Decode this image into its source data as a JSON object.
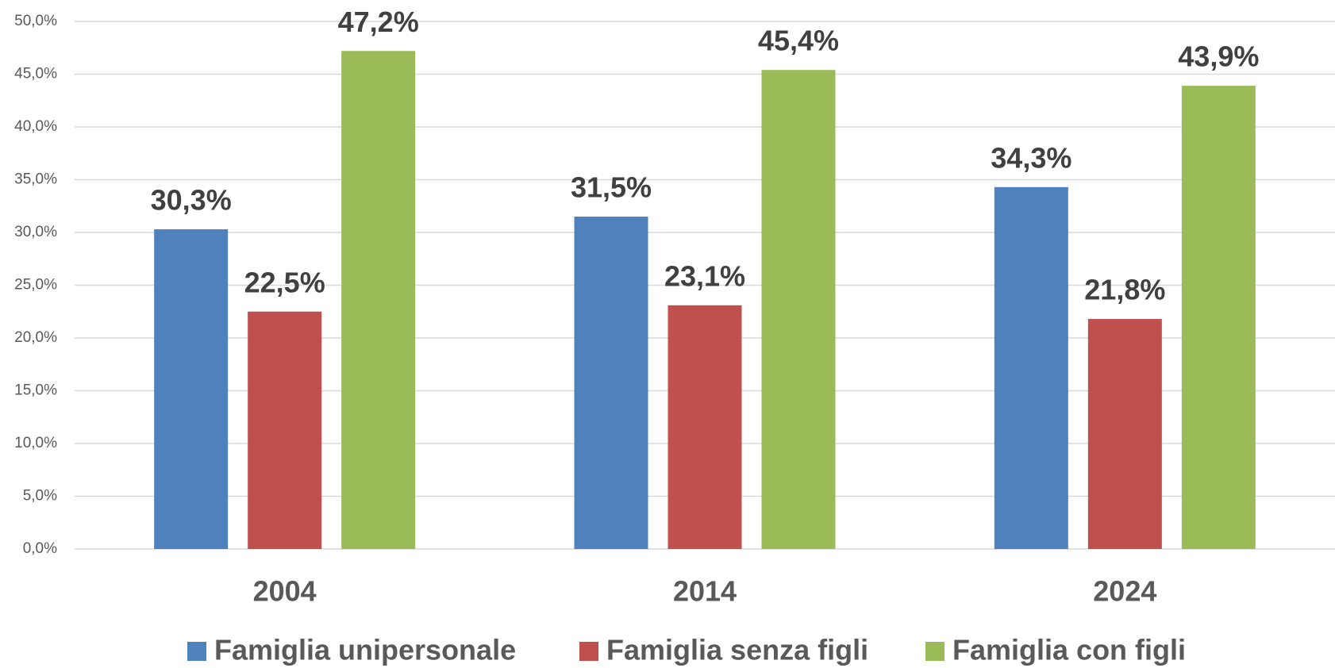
{
  "chart_data": {
    "type": "bar",
    "categories": [
      "2004",
      "2014",
      "2024"
    ],
    "series": [
      {
        "name": "Famiglia unipersonale",
        "color": "#4f81bd",
        "values": [
          30.3,
          31.5,
          34.3
        ],
        "value_labels": [
          "30,3%",
          "31,5%",
          "34,3%"
        ]
      },
      {
        "name": "Famiglia senza figli",
        "color": "#c0504d",
        "values": [
          22.5,
          23.1,
          21.8
        ],
        "value_labels": [
          "22,5%",
          "23,1%",
          "21,8%"
        ]
      },
      {
        "name": "Famiglia con figli",
        "color": "#9bbb59",
        "values": [
          47.2,
          45.4,
          43.9
        ],
        "value_labels": [
          "47,2%",
          "45,4%",
          "43,9%"
        ]
      }
    ],
    "ylim": [
      0,
      50
    ],
    "yticks": [
      {
        "value": 0,
        "label": "0,0%"
      },
      {
        "value": 5,
        "label": "5,0%"
      },
      {
        "value": 10,
        "label": "10,0%"
      },
      {
        "value": 15,
        "label": "15,0%"
      },
      {
        "value": 20,
        "label": "20,0%"
      },
      {
        "value": 25,
        "label": "25,0%"
      },
      {
        "value": 30,
        "label": "30,0%"
      },
      {
        "value": 35,
        "label": "35,0%"
      },
      {
        "value": 40,
        "label": "40,0%"
      },
      {
        "value": 45,
        "label": "45,0%"
      },
      {
        "value": 50,
        "label": "50,0%"
      }
    ],
    "grid": true,
    "legend": "bottom"
  }
}
